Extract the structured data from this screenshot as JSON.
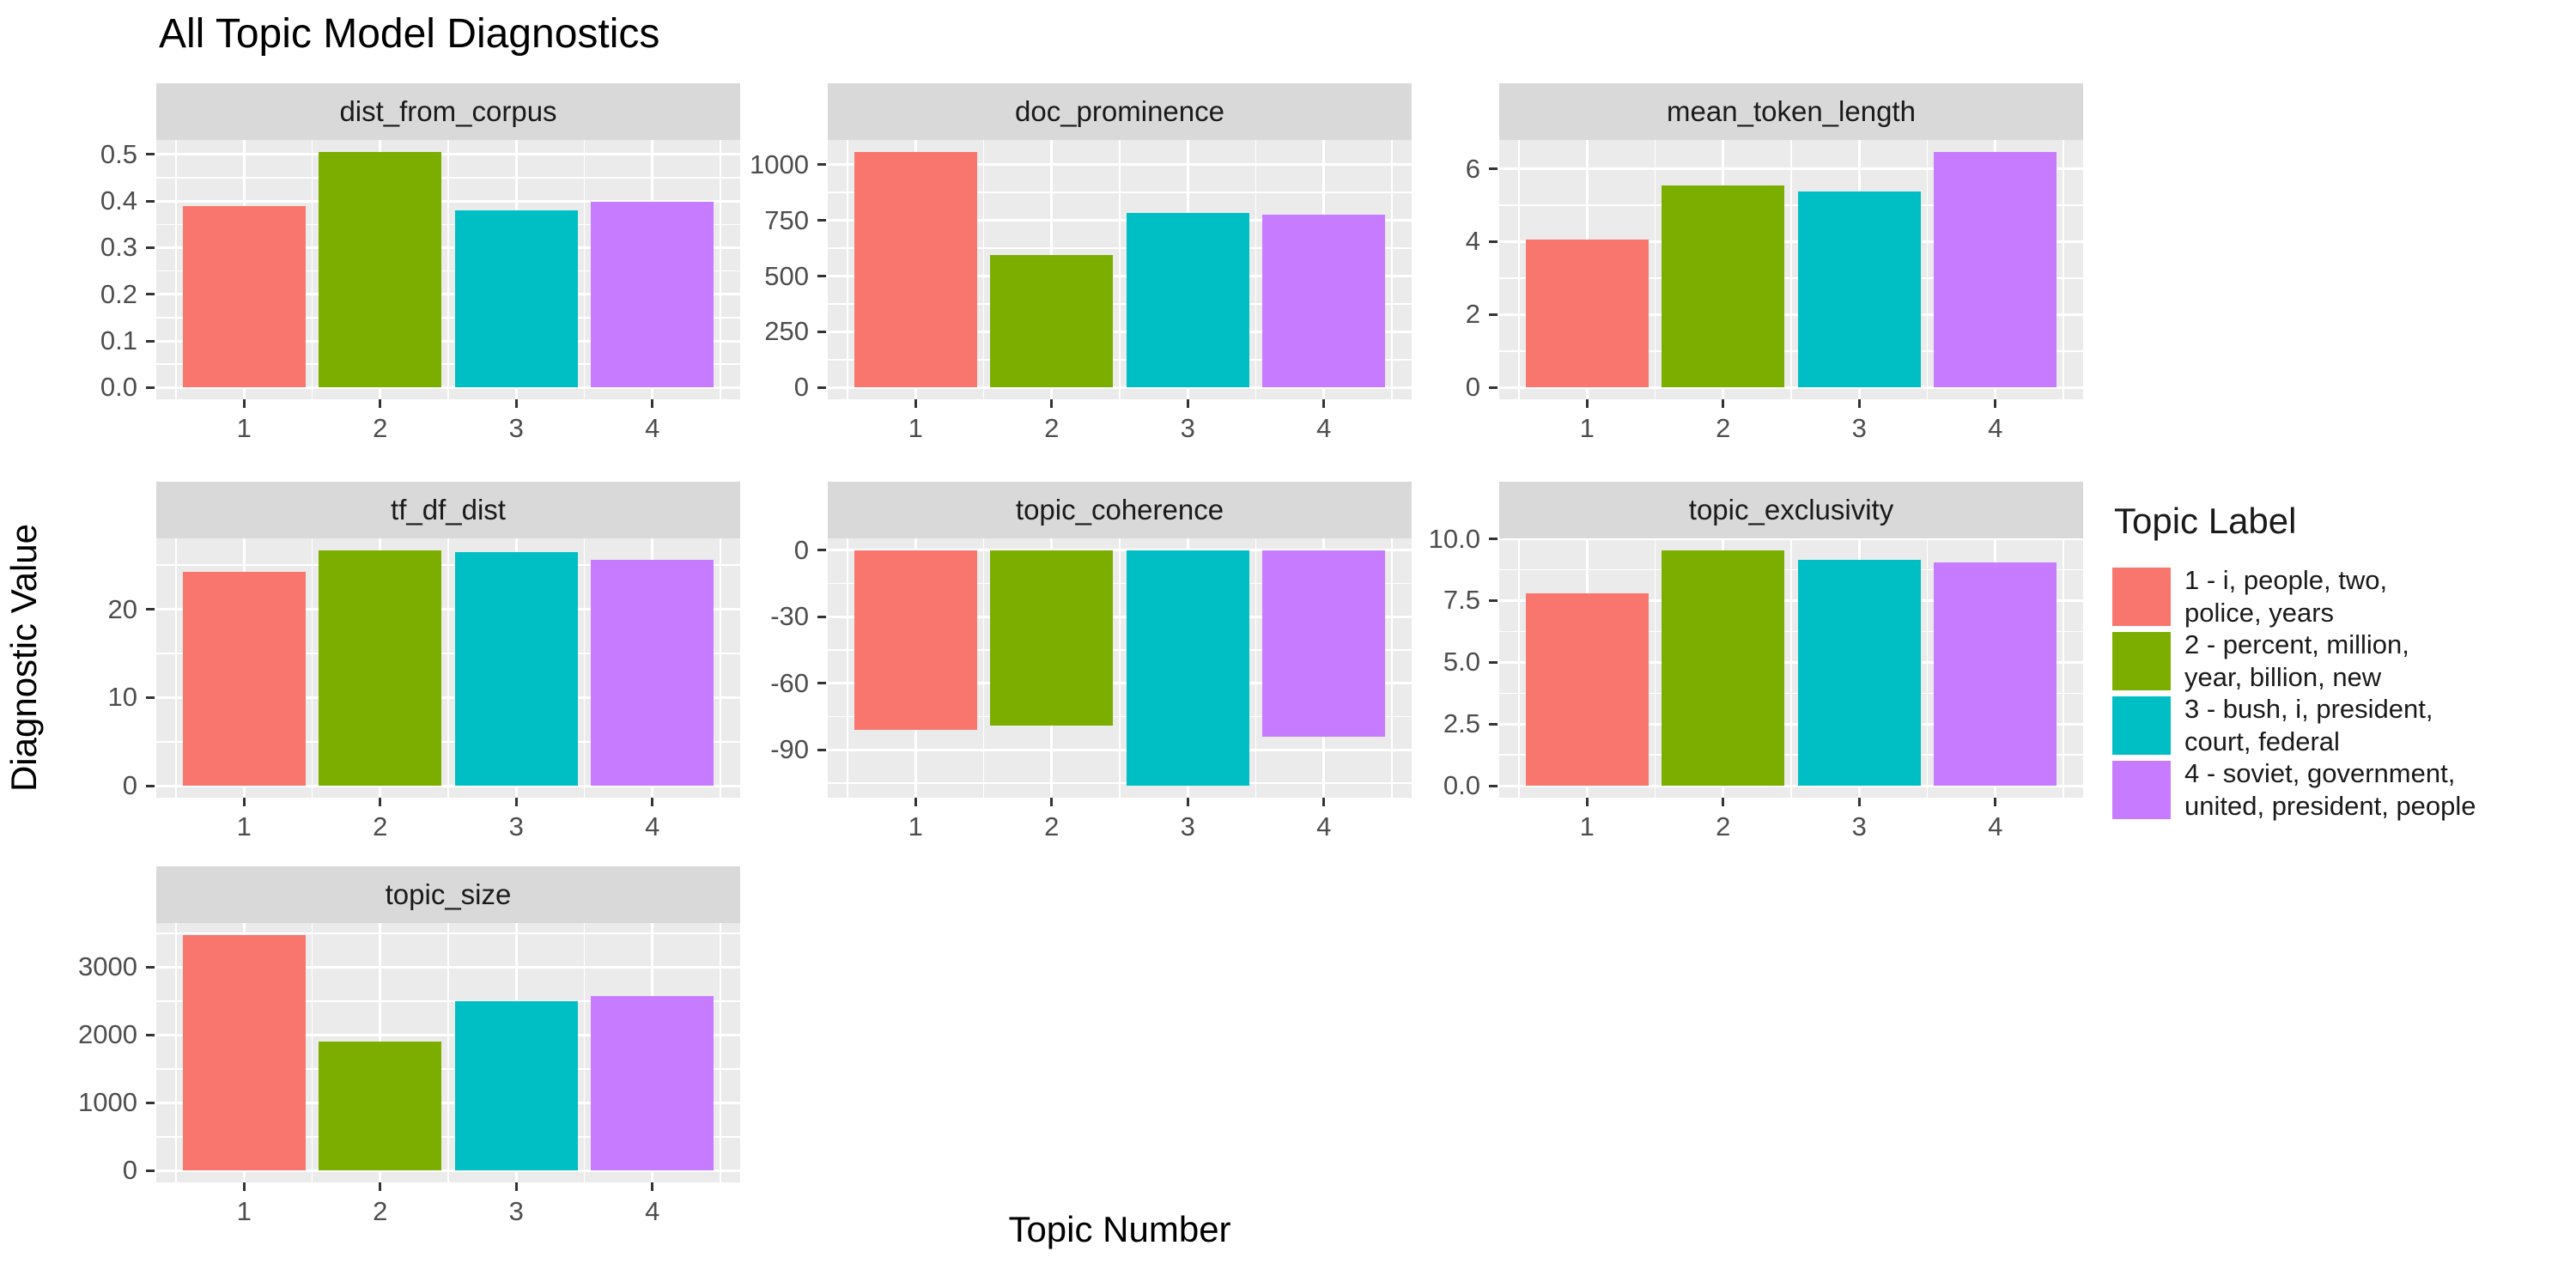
{
  "title": "All Topic Model Diagnostics",
  "axes": {
    "x_title": "Topic Number",
    "y_title": "Diagnostic Value"
  },
  "legend": {
    "title": "Topic Label",
    "items": [
      {
        "label": "1 - i, people, two,\npolice, years",
        "color": "#F8766D"
      },
      {
        "label": "2 - percent, million,\nyear, billion, new",
        "color": "#7CAE00"
      },
      {
        "label": "3 - bush, i, president,\ncourt, federal",
        "color": "#00BFC4"
      },
      {
        "label": "4 - soviet, government,\nunited, president, people",
        "color": "#C77CFF"
      }
    ]
  },
  "palette": [
    "#F8766D",
    "#7CAE00",
    "#00BFC4",
    "#C77CFF"
  ],
  "colors": {
    "strip_bg": "#D9D9D9",
    "panel_bg": "#EBEBEB",
    "grid": "#FFFFFF",
    "tick_text": "#4D4D4D",
    "strip_text": "#1A1A1A"
  },
  "chart_data": [
    {
      "type": "bar",
      "title": "dist_from_corpus",
      "categories": [
        1,
        2,
        3,
        4
      ],
      "values": [
        0.39,
        0.506,
        0.381,
        0.399
      ],
      "ylim": [
        -0.0253,
        0.5313
      ],
      "yticks": [
        0,
        0.1,
        0.2,
        0.3,
        0.4,
        0.5
      ],
      "ytick_labels": [
        "0.0",
        "0.1",
        "0.2",
        "0.3",
        "0.4",
        "0.5"
      ],
      "xtick_labels": [
        "1",
        "2",
        "3",
        "4"
      ]
    },
    {
      "type": "bar",
      "title": "doc_prominence",
      "categories": [
        1,
        2,
        3,
        4
      ],
      "values": [
        1058,
        596,
        785,
        776
      ],
      "ylim": [
        -52.9,
        1110.9
      ],
      "yticks": [
        0,
        250,
        500,
        750,
        1000
      ],
      "ytick_labels": [
        "0",
        "250",
        "500",
        "750",
        "1000"
      ],
      "xtick_labels": [
        "1",
        "2",
        "3",
        "4"
      ]
    },
    {
      "type": "bar",
      "title": "mean_token_length",
      "categories": [
        1,
        2,
        3,
        4
      ],
      "values": [
        4.06,
        5.55,
        5.37,
        6.47
      ],
      "ylim": [
        -0.324,
        6.79
      ],
      "yticks": [
        0,
        2,
        4,
        6
      ],
      "ytick_labels": [
        "0",
        "2",
        "4",
        "6"
      ],
      "xtick_labels": [
        "1",
        "2",
        "3",
        "4"
      ]
    },
    {
      "type": "bar",
      "title": "tf_df_dist",
      "categories": [
        1,
        2,
        3,
        4
      ],
      "values": [
        24.2,
        26.7,
        26.5,
        25.6
      ],
      "ylim": [
        -1.34,
        28.04
      ],
      "yticks": [
        0,
        10,
        20
      ],
      "ytick_labels": [
        "0",
        "10",
        "20"
      ],
      "xtick_labels": [
        "1",
        "2",
        "3",
        "4"
      ]
    },
    {
      "type": "bar",
      "title": "topic_coherence",
      "categories": [
        1,
        2,
        3,
        4
      ],
      "values": [
        -81,
        -79,
        -106,
        -84
      ],
      "ylim": [
        -111.6,
        5.3
      ],
      "yticks": [
        0,
        -30,
        -60,
        -90
      ],
      "ytick_labels": [
        "0",
        "-30",
        "-60",
        "-90"
      ],
      "xtick_labels": [
        "1",
        "2",
        "3",
        "4"
      ]
    },
    {
      "type": "bar",
      "title": "topic_exclusivity",
      "categories": [
        1,
        2,
        3,
        4
      ],
      "values": [
        7.8,
        9.55,
        9.15,
        9.05
      ],
      "ylim": [
        -0.48,
        10.02
      ],
      "yticks": [
        0,
        2.5,
        5,
        7.5,
        10
      ],
      "ytick_labels": [
        "0.0",
        "2.5",
        "5.0",
        "7.5",
        "10.0"
      ],
      "xtick_labels": [
        "1",
        "2",
        "3",
        "4"
      ]
    },
    {
      "type": "bar",
      "title": "topic_size",
      "categories": [
        1,
        2,
        3,
        4
      ],
      "values": [
        3475,
        1900,
        2500,
        2575
      ],
      "ylim": [
        -174,
        3649
      ],
      "yticks": [
        0,
        1000,
        2000,
        3000
      ],
      "ytick_labels": [
        "0",
        "1000",
        "2000",
        "3000"
      ],
      "xtick_labels": [
        "1",
        "2",
        "3",
        "4"
      ]
    }
  ]
}
